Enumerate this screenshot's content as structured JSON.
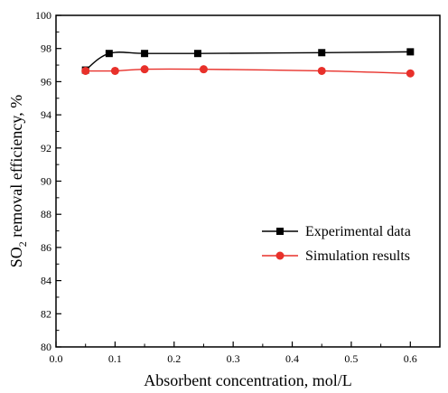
{
  "chart_data": {
    "type": "line",
    "xlabel": "Absorbent concentration, mol/L",
    "ylabel": "SO",
    "ylabel_sub": "2",
    "ylabel_rest": " removal efficiency, %",
    "xlim": [
      0.0,
      0.65
    ],
    "ylim": [
      80,
      100
    ],
    "xticks": [
      "0.0",
      "0.1",
      "0.2",
      "0.3",
      "0.4",
      "0.5",
      "0.6"
    ],
    "yticks": [
      "80",
      "82",
      "84",
      "86",
      "88",
      "90",
      "92",
      "94",
      "96",
      "98",
      "100"
    ],
    "grid": false,
    "legend_position": "center-right",
    "series": [
      {
        "name": "Experimental data",
        "marker": "square",
        "color": "#000000",
        "x": [
          0.05,
          0.09,
          0.15,
          0.24,
          0.45,
          0.6
        ],
        "y": [
          96.7,
          97.7,
          97.7,
          97.7,
          97.75,
          97.8
        ]
      },
      {
        "name": "Simulation results",
        "marker": "circle",
        "color": "#e8302a",
        "x": [
          0.05,
          0.1,
          0.15,
          0.25,
          0.45,
          0.6
        ],
        "y": [
          96.65,
          96.65,
          96.75,
          96.75,
          96.65,
          96.5
        ]
      }
    ]
  }
}
